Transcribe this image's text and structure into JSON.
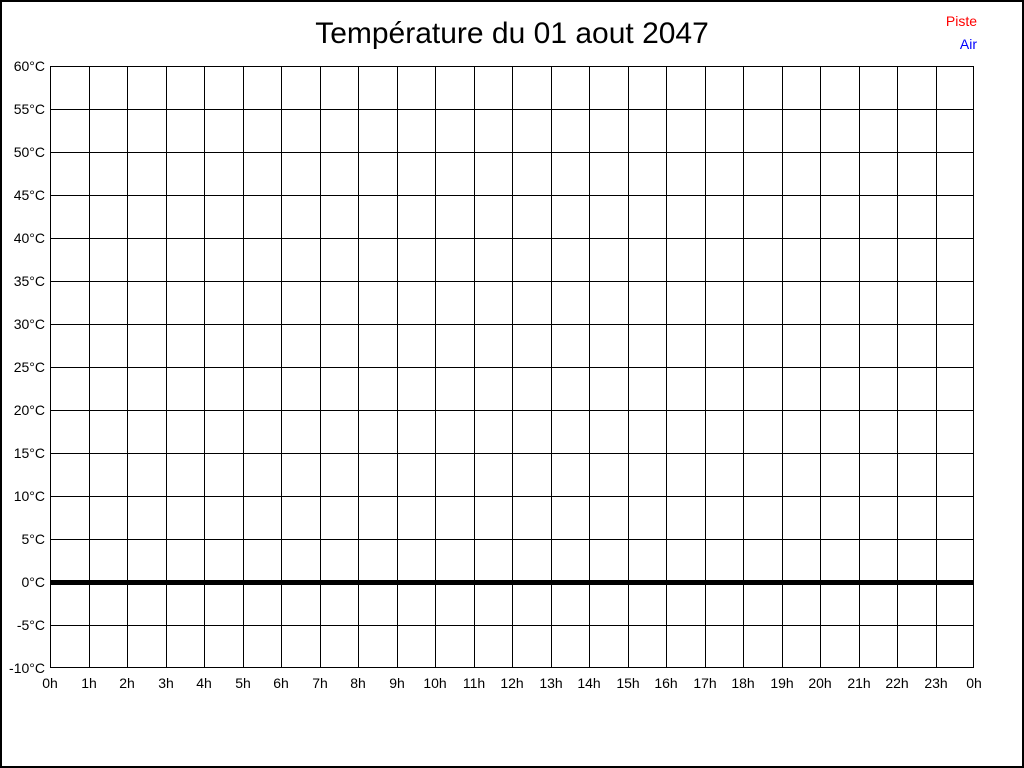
{
  "title": "Température du 01 aout 2047",
  "chart_data": {
    "type": "line",
    "title": "Température du 01 aout 2047",
    "xlabel": "",
    "ylabel": "",
    "xlim": [
      0,
      24
    ],
    "ylim": [
      -10,
      60
    ],
    "y_step_degrees": 5,
    "x_step_hours": 1,
    "grid": true,
    "x_tick_labels": [
      "0h",
      "1h",
      "2h",
      "3h",
      "4h",
      "5h",
      "6h",
      "7h",
      "8h",
      "9h",
      "10h",
      "11h",
      "12h",
      "13h",
      "14h",
      "15h",
      "16h",
      "17h",
      "18h",
      "19h",
      "20h",
      "21h",
      "22h",
      "23h",
      "0h"
    ],
    "y_tick_labels": [
      "60°C",
      "55°C",
      "50°C",
      "45°C",
      "40°C",
      "35°C",
      "30°C",
      "25°C",
      "20°C",
      "15°C",
      "10°C",
      "5°C",
      "0°C",
      "-5°C",
      "-10°C"
    ],
    "baseline": {
      "value_c": 0,
      "style": "thick-black",
      "thickness_px": 5
    },
    "legend": {
      "position": "top-right",
      "entries": [
        {
          "label": "Piste",
          "color": "#ff0000"
        },
        {
          "label": "Air",
          "color": "#0000ff"
        }
      ]
    },
    "series": [
      {
        "name": "Piste",
        "color": "#ff0000",
        "values": []
      },
      {
        "name": "Air",
        "color": "#0000ff",
        "values": []
      }
    ],
    "notes": "No data plotted; empty grid with bold 0°C reference line"
  }
}
